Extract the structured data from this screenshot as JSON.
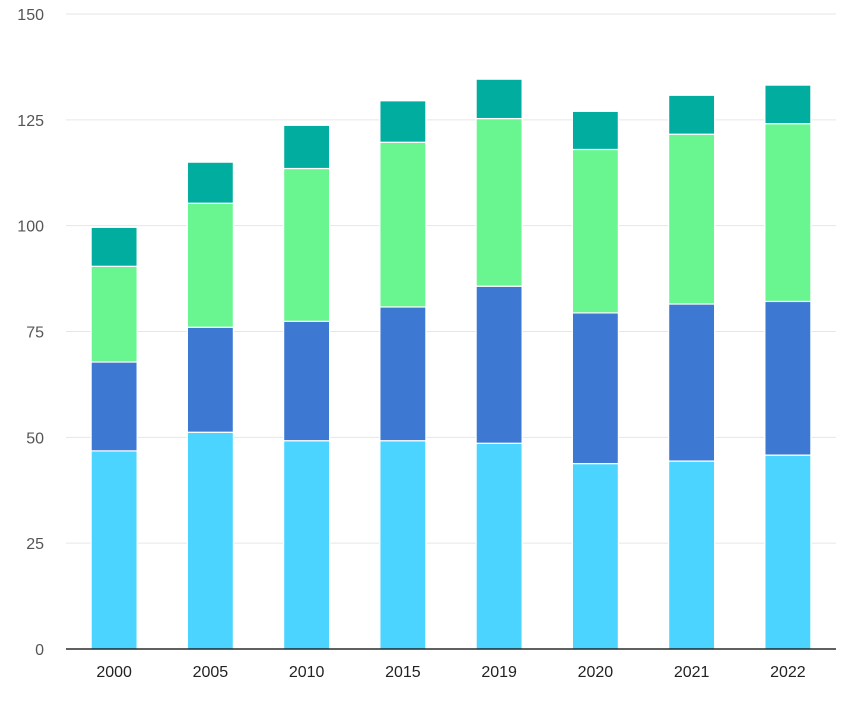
{
  "chart_data": {
    "type": "bar",
    "stacked": true,
    "categories": [
      "2000",
      "2005",
      "2010",
      "2015",
      "2019",
      "2020",
      "2021",
      "2022"
    ],
    "series": [
      {
        "values": [
          46.8,
          51.2,
          49.2,
          49.2,
          48.6,
          43.8,
          44.4,
          45.8
        ],
        "color": "#4ad4ff"
      },
      {
        "values": [
          21.0,
          24.8,
          28.2,
          31.6,
          37.1,
          35.6,
          37.1,
          36.3
        ],
        "color": "#3d78d3"
      },
      {
        "values": [
          22.6,
          29.3,
          36.1,
          38.9,
          39.6,
          38.6,
          40.1,
          42.0
        ],
        "color": "#69f690"
      },
      {
        "values": [
          9.2,
          9.7,
          10.2,
          9.8,
          9.3,
          9.0,
          9.2,
          9.1
        ],
        "color": "#00ad9f"
      }
    ],
    "ylim": [
      0,
      150
    ],
    "yticks": [
      0,
      25,
      50,
      75,
      100,
      125,
      150
    ],
    "xlabel": "",
    "ylabel": "",
    "grid": true,
    "gridColor": "#e6e6e6",
    "axisColor": "#000000"
  }
}
